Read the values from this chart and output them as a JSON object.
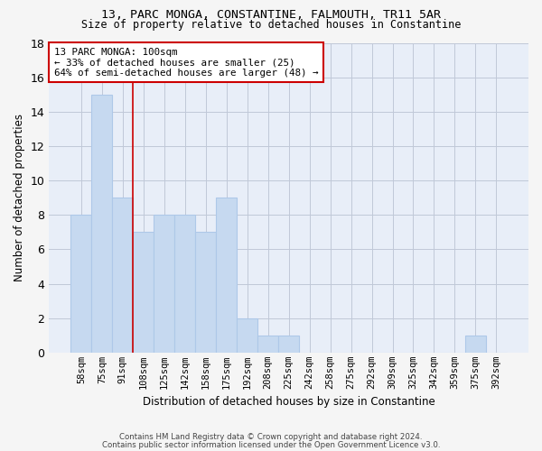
{
  "title": "13, PARC MONGA, CONSTANTINE, FALMOUTH, TR11 5AR",
  "subtitle": "Size of property relative to detached houses in Constantine",
  "xlabel": "Distribution of detached houses by size in Constantine",
  "ylabel": "Number of detached properties",
  "categories": [
    "58sqm",
    "75sqm",
    "91sqm",
    "108sqm",
    "125sqm",
    "142sqm",
    "158sqm",
    "175sqm",
    "192sqm",
    "208sqm",
    "225sqm",
    "242sqm",
    "258sqm",
    "275sqm",
    "292sqm",
    "309sqm",
    "325sqm",
    "342sqm",
    "359sqm",
    "375sqm",
    "392sqm"
  ],
  "values": [
    8,
    15,
    9,
    7,
    8,
    8,
    7,
    9,
    2,
    1,
    1,
    0,
    0,
    0,
    0,
    0,
    0,
    0,
    0,
    1,
    0
  ],
  "bar_color": "#c6d9f0",
  "bar_edge_color": "#aec8e8",
  "grid_color": "#c0c8d8",
  "background_color": "#e8eef8",
  "red_line_x": 2.5,
  "annotation_text": "13 PARC MONGA: 100sqm\n← 33% of detached houses are smaller (25)\n64% of semi-detached houses are larger (48) →",
  "annotation_box_color": "#ffffff",
  "annotation_box_edge": "#cc0000",
  "ylim": [
    0,
    18
  ],
  "yticks": [
    0,
    2,
    4,
    6,
    8,
    10,
    12,
    14,
    16,
    18
  ],
  "footer1": "Contains HM Land Registry data © Crown copyright and database right 2024.",
  "footer2": "Contains public sector information licensed under the Open Government Licence v3.0."
}
